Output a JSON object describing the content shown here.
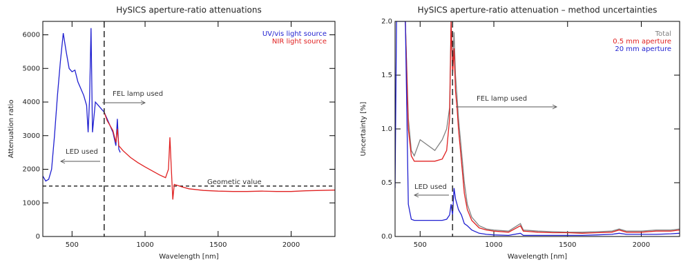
{
  "chart_data": [
    {
      "type": "line",
      "title": "HySICS aperture-ratio attenuations",
      "x_label": "Wavelength [nm]",
      "y_label": "Attenuation ratio",
      "x": [
        300,
        320,
        340,
        360,
        380,
        400,
        420,
        440,
        460,
        480,
        500,
        520,
        540,
        560,
        580,
        600,
        610,
        620,
        630,
        640,
        660,
        680,
        700,
        720,
        740,
        760,
        780,
        800,
        810,
        820,
        830,
        850,
        900,
        950,
        1000,
        1050,
        1100,
        1140,
        1160,
        1170,
        1180,
        1190,
        1200,
        1250,
        1300,
        1400,
        1500,
        1600,
        1700,
        1800,
        1900,
        2000,
        2100,
        2200,
        2300
      ],
      "series": [
        {
          "name": "UV/vis light source",
          "color": "#1f1fd0",
          "values": [
            1800,
            1650,
            1700,
            2000,
            3000,
            4200,
            5200,
            6050,
            5500,
            5000,
            4900,
            4950,
            4600,
            4400,
            4200,
            3900,
            3100,
            4100,
            6200,
            3100,
            4000,
            3900,
            3800,
            3700,
            3500,
            3300,
            3100,
            2700,
            3500,
            2600,
            2500,
            null,
            null,
            null,
            null,
            null,
            null,
            null,
            null,
            null,
            null,
            null,
            null,
            null,
            null,
            null,
            null,
            null,
            null,
            null,
            null,
            null,
            null,
            null,
            null
          ]
        },
        {
          "name": "NIR light source",
          "color": "#e02020",
          "values": [
            null,
            null,
            null,
            null,
            null,
            null,
            null,
            null,
            null,
            null,
            null,
            null,
            null,
            null,
            null,
            null,
            null,
            null,
            null,
            null,
            null,
            null,
            null,
            3700,
            3450,
            3300,
            3150,
            2800,
            3200,
            2700,
            2650,
            2550,
            2350,
            2200,
            2070,
            1950,
            1830,
            1750,
            2000,
            2950,
            2000,
            1100,
            1550,
            1480,
            1420,
            1370,
            1350,
            1340,
            1340,
            1350,
            1340,
            1340,
            1360,
            1370,
            1380
          ]
        }
      ],
      "xlim": [
        300,
        2300
      ],
      "xticks": [
        500,
        1000,
        1500,
        2000
      ],
      "ylim": [
        0,
        6400
      ],
      "yticks": [
        0,
        1000,
        2000,
        3000,
        4000,
        5000,
        6000
      ],
      "hline": 1500,
      "vline": 720,
      "annotations": [
        "FEL lamp used",
        "LED used",
        "Geometic value"
      ],
      "legend": "upper right"
    },
    {
      "type": "line",
      "title": "HySICS aperture-ratio attenuation – method uncertainties",
      "x_label": "Wavelength [nm]",
      "y_label": "Uncertainty [%]",
      "x": [
        330,
        340,
        360,
        380,
        400,
        420,
        440,
        460,
        500,
        600,
        650,
        680,
        700,
        710,
        720,
        730,
        740,
        750,
        760,
        780,
        800,
        820,
        850,
        900,
        950,
        1000,
        1100,
        1180,
        1200,
        1300,
        1400,
        1500,
        1600,
        1700,
        1800,
        1850,
        1900,
        2000,
        2100,
        2200,
        2260
      ],
      "series": [
        {
          "name": "Total",
          "color": "#808080",
          "values": [
            null,
            null,
            null,
            null,
            2.0,
            1.1,
            0.8,
            0.75,
            0.9,
            0.8,
            0.9,
            1.0,
            1.2,
            2.0,
            1.6,
            1.9,
            1.5,
            1.3,
            1.1,
            0.8,
            0.5,
            0.3,
            0.18,
            0.1,
            0.07,
            0.06,
            0.05,
            0.12,
            0.06,
            0.05,
            0.045,
            0.04,
            0.04,
            0.045,
            0.05,
            0.07,
            0.05,
            0.05,
            0.06,
            0.06,
            0.07
          ]
        },
        {
          "name": "0.5 mm aperture",
          "color": "#e02020",
          "values": [
            null,
            null,
            null,
            null,
            2.0,
            1.0,
            0.75,
            0.7,
            0.7,
            0.7,
            0.72,
            0.8,
            1.1,
            2.0,
            1.5,
            1.75,
            1.35,
            1.2,
            1.0,
            0.7,
            0.4,
            0.25,
            0.15,
            0.08,
            0.06,
            0.05,
            0.04,
            0.1,
            0.05,
            0.04,
            0.035,
            0.035,
            0.03,
            0.035,
            0.04,
            0.06,
            0.04,
            0.04,
            0.05,
            0.05,
            0.06
          ]
        },
        {
          "name": "20 mm aperture",
          "color": "#1f1fd0",
          "values": [
            0.45,
            2.0,
            2.0,
            2.0,
            2.0,
            0.3,
            0.16,
            0.15,
            0.15,
            0.15,
            0.15,
            0.16,
            0.2,
            0.3,
            0.2,
            0.45,
            0.35,
            0.3,
            0.25,
            0.2,
            0.12,
            0.1,
            0.06,
            0.03,
            0.02,
            0.015,
            0.01,
            0.03,
            0.01,
            0.01,
            0.01,
            0.01,
            0.01,
            0.015,
            0.02,
            0.03,
            0.02,
            0.02,
            0.02,
            0.025,
            0.03
          ]
        }
      ],
      "xlim": [
        330,
        2260
      ],
      "xticks": [
        500,
        1000,
        1500,
        2000
      ],
      "ylim": [
        0,
        2
      ],
      "yticks": [
        {
          "value": 0,
          "label": "0.0"
        },
        {
          "value": 0.5,
          "label": "0.5"
        },
        {
          "value": 1,
          "label": "1.0"
        },
        {
          "value": 1.5,
          "label": "1.5"
        },
        {
          "value": 2,
          "label": "2.0"
        }
      ],
      "vline": 720,
      "annotations": [
        "FEL lamp used",
        "LED used"
      ],
      "legend": "upper right"
    }
  ]
}
